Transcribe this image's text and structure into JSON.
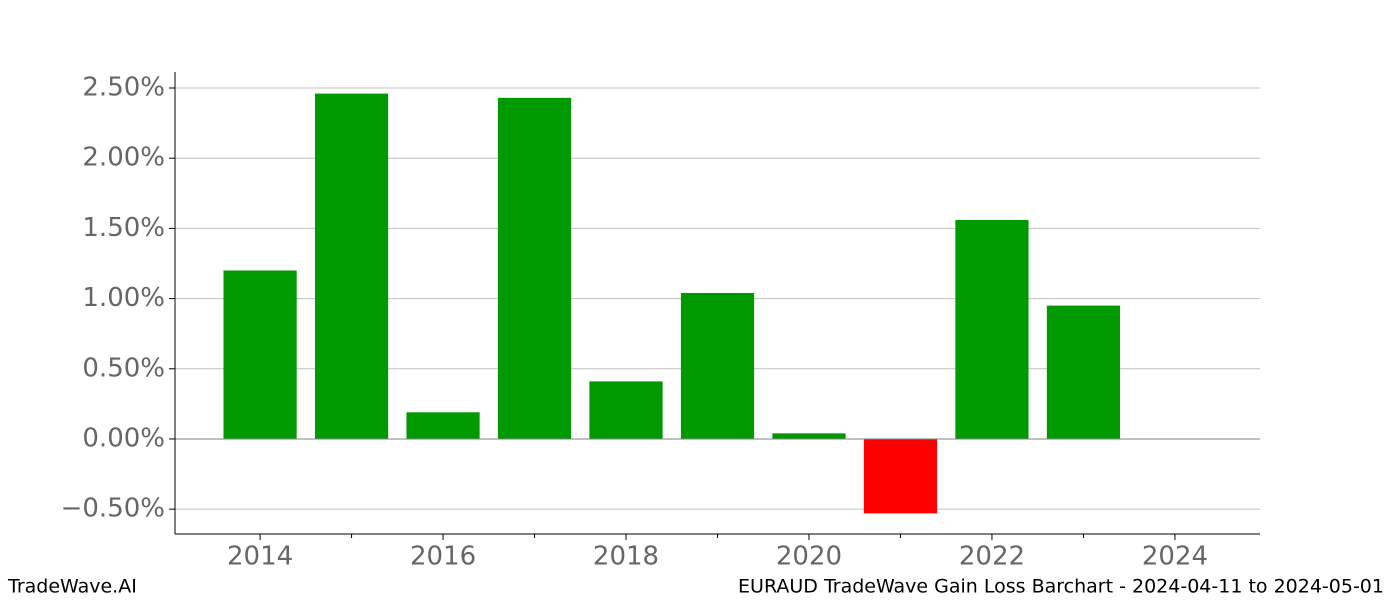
{
  "chart_data": {
    "type": "bar",
    "x": [
      2014,
      2015,
      2016,
      2017,
      2018,
      2019,
      2020,
      2021,
      2022,
      2023
    ],
    "values": [
      1.2,
      2.46,
      0.19,
      2.43,
      0.41,
      1.04,
      0.04,
      -0.53,
      1.56,
      0.95
    ],
    "colors": [
      "#009900",
      "#009900",
      "#009900",
      "#009900",
      "#009900",
      "#009900",
      "#009900",
      "#ff0000",
      "#009900",
      "#009900"
    ],
    "bar_width": 0.8,
    "xlim": [
      2013.07,
      2024.93
    ],
    "xticks": [
      2014,
      2016,
      2018,
      2020,
      2022,
      2024
    ],
    "xminorticks": [
      2015,
      2017,
      2019,
      2021,
      2023
    ],
    "ylim": [
      -0.677,
      2.614
    ],
    "yticks": [
      {
        "value": -0.5,
        "label": "−0.50%"
      },
      {
        "value": 0,
        "label": "0.00%"
      },
      {
        "value": 0.5,
        "label": "0.50%"
      },
      {
        "value": 1,
        "label": "1.00%"
      },
      {
        "value": 1.5,
        "label": "1.50%"
      },
      {
        "value": 2,
        "label": "2.00%"
      },
      {
        "value": 2.5,
        "label": "2.50%"
      }
    ],
    "grid": true,
    "footer_left": "TradeWave.AI",
    "footer_right": "EURAUD TradeWave Gain Loss Barchart - 2024-04-11 to 2024-05-01"
  }
}
